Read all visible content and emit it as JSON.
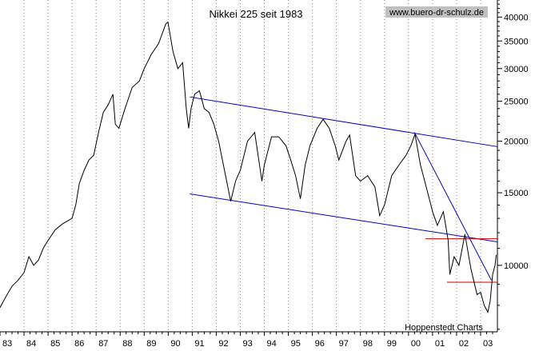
{
  "chart_data": {
    "type": "line",
    "title": "Nikkei 225 seit 1983",
    "watermark": "www.buero-dr-schulz.de",
    "credit": "Hoppenstedt Charts",
    "xlabel": "",
    "ylabel": "",
    "y_scale": "log",
    "ylim": [
      6900,
      44000
    ],
    "xlim": [
      1983.0,
      2003.7
    ],
    "x_tick_labels": [
      "83",
      "84",
      "85",
      "86",
      "87",
      "88",
      "89",
      "90",
      "91",
      "92",
      "93",
      "94",
      "95",
      "96",
      "97",
      "98",
      "99",
      "00",
      "01",
      "02",
      "03"
    ],
    "y_ticks": [
      10000,
      15000,
      20000,
      25000,
      30000,
      35000,
      40000
    ],
    "grid": {
      "vertical": "dotted",
      "horizontal": "none"
    },
    "colors": {
      "price": "#000000",
      "trend_channel": "#0000cc",
      "support_resistance": "#cc0000"
    },
    "series": [
      {
        "values": [
          [
            1983.0,
            7900
          ],
          [
            1983.25,
            8400
          ],
          [
            1983.5,
            8900
          ],
          [
            1983.75,
            9200
          ],
          [
            1984.0,
            9600
          ],
          [
            1984.2,
            10500
          ],
          [
            1984.4,
            10000
          ],
          [
            1984.6,
            10300
          ],
          [
            1984.8,
            11000
          ],
          [
            1985.0,
            11500
          ],
          [
            1985.3,
            12200
          ],
          [
            1985.6,
            12600
          ],
          [
            1985.9,
            12900
          ],
          [
            1986.0,
            13000
          ],
          [
            1986.15,
            14000
          ],
          [
            1986.3,
            15800
          ],
          [
            1986.5,
            17000
          ],
          [
            1986.7,
            18000
          ],
          [
            1986.9,
            18500
          ],
          [
            1987.1,
            21000
          ],
          [
            1987.3,
            23500
          ],
          [
            1987.5,
            24500
          ],
          [
            1987.7,
            26000
          ],
          [
            1987.8,
            22000
          ],
          [
            1987.95,
            21500
          ],
          [
            1988.2,
            24000
          ],
          [
            1988.5,
            27000
          ],
          [
            1988.8,
            28000
          ],
          [
            1989.0,
            30000
          ],
          [
            1989.3,
            32500
          ],
          [
            1989.6,
            34500
          ],
          [
            1989.9,
            38500
          ],
          [
            1989.99,
            38900
          ],
          [
            1990.2,
            33000
          ],
          [
            1990.4,
            30000
          ],
          [
            1990.6,
            31000
          ],
          [
            1990.75,
            24000
          ],
          [
            1990.85,
            21500
          ],
          [
            1990.95,
            24000
          ],
          [
            1991.1,
            26000
          ],
          [
            1991.3,
            26500
          ],
          [
            1991.5,
            24000
          ],
          [
            1991.7,
            23500
          ],
          [
            1991.9,
            22000
          ],
          [
            1992.1,
            20000
          ],
          [
            1992.3,
            17500
          ],
          [
            1992.6,
            14300
          ],
          [
            1992.8,
            16000
          ],
          [
            1993.0,
            17000
          ],
          [
            1993.3,
            20000
          ],
          [
            1993.6,
            21000
          ],
          [
            1993.9,
            16000
          ],
          [
            1994.0,
            17500
          ],
          [
            1994.3,
            20500
          ],
          [
            1994.6,
            20500
          ],
          [
            1994.9,
            19500
          ],
          [
            1995.1,
            18000
          ],
          [
            1995.3,
            16500
          ],
          [
            1995.5,
            14500
          ],
          [
            1995.7,
            17500
          ],
          [
            1995.9,
            19500
          ],
          [
            1996.2,
            21500
          ],
          [
            1996.45,
            22600
          ],
          [
            1996.7,
            21500
          ],
          [
            1996.95,
            19500
          ],
          [
            1997.1,
            18000
          ],
          [
            1997.4,
            20000
          ],
          [
            1997.55,
            20700
          ],
          [
            1997.8,
            16500
          ],
          [
            1998.0,
            16000
          ],
          [
            1998.3,
            16500
          ],
          [
            1998.6,
            15500
          ],
          [
            1998.8,
            13200
          ],
          [
            1999.0,
            14000
          ],
          [
            1999.3,
            16500
          ],
          [
            1999.6,
            17500
          ],
          [
            1999.9,
            18500
          ],
          [
            2000.1,
            19500
          ],
          [
            2000.27,
            20800
          ],
          [
            2000.5,
            17500
          ],
          [
            2000.8,
            15000
          ],
          [
            2001.0,
            13500
          ],
          [
            2001.2,
            12500
          ],
          [
            2001.45,
            13500
          ],
          [
            2001.65,
            11500
          ],
          [
            2001.72,
            9500
          ],
          [
            2001.9,
            10500
          ],
          [
            2002.1,
            10000
          ],
          [
            2002.35,
            11900
          ],
          [
            2002.6,
            9800
          ],
          [
            2002.85,
            8500
          ],
          [
            2003.0,
            8600
          ],
          [
            2003.15,
            8000
          ],
          [
            2003.3,
            7700
          ],
          [
            2003.4,
            8200
          ],
          [
            2003.5,
            9500
          ],
          [
            2003.6,
            10000
          ],
          [
            2003.65,
            10600
          ]
        ]
      }
    ],
    "trend_lines": [
      {
        "kind": "channel-upper",
        "points": [
          [
            1990.9,
            25600
          ],
          [
            2003.7,
            19400
          ]
        ]
      },
      {
        "kind": "channel-lower",
        "points": [
          [
            1990.9,
            14900
          ],
          [
            2003.7,
            11400
          ]
        ]
      },
      {
        "kind": "downtrend",
        "points": [
          [
            2000.25,
            21000
          ],
          [
            2003.45,
            9200
          ]
        ]
      },
      {
        "kind": "resistance",
        "points": [
          [
            2000.7,
            11600
          ],
          [
            2003.7,
            11600
          ]
        ]
      },
      {
        "kind": "support",
        "points": [
          [
            2001.6,
            9100
          ],
          [
            2003.7,
            9100
          ]
        ]
      }
    ]
  }
}
